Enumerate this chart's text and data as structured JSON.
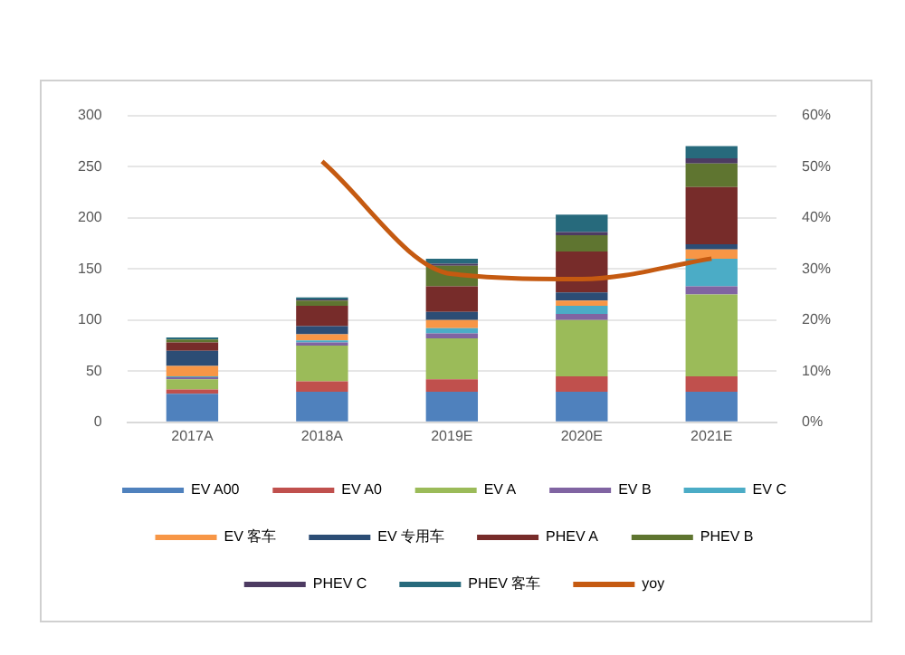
{
  "chart_data": {
    "type": "bar",
    "stacked": true,
    "categories": [
      "2017A",
      "2018A",
      "2019E",
      "2020E",
      "2021E"
    ],
    "series": [
      {
        "name": "EV A00",
        "color": "#4f81bd",
        "values": [
          28,
          30,
          30,
          30,
          30
        ]
      },
      {
        "name": "EV A0",
        "color": "#c0504d",
        "values": [
          4,
          10,
          12,
          15,
          15
        ]
      },
      {
        "name": "EV A",
        "color": "#9bbb59",
        "values": [
          10,
          35,
          40,
          55,
          80
        ]
      },
      {
        "name": "EV B",
        "color": "#8064a2",
        "values": [
          2,
          3,
          5,
          6,
          8
        ]
      },
      {
        "name": "EV C",
        "color": "#4bacc6",
        "values": [
          1,
          2,
          5,
          8,
          27
        ]
      },
      {
        "name": "EV 客车",
        "color": "#f79646",
        "values": [
          10,
          6,
          8,
          5,
          9
        ]
      },
      {
        "name": "EV 专用车",
        "color": "#2c4d75",
        "values": [
          15,
          8,
          8,
          8,
          5
        ]
      },
      {
        "name": "PHEV A",
        "color": "#772c2a",
        "values": [
          8,
          20,
          25,
          40,
          56
        ]
      },
      {
        "name": "PHEV B",
        "color": "#5f7530",
        "values": [
          3,
          5,
          20,
          16,
          23
        ]
      },
      {
        "name": "PHEV C",
        "color": "#4d3b62",
        "values": [
          0,
          1,
          2,
          3,
          5
        ]
      },
      {
        "name": "PHEV 客车",
        "color": "#276a7c",
        "values": [
          2,
          2,
          5,
          17,
          12
        ]
      },
      {
        "name": "yoy",
        "type": "line",
        "axis": "y2",
        "color": "#c55a11",
        "values": [
          null,
          51,
          29,
          28,
          32
        ]
      }
    ],
    "ylim": [
      0,
      300
    ],
    "yticks": [
      0,
      50,
      100,
      150,
      200,
      250,
      300
    ],
    "y2lim": [
      0,
      60
    ],
    "y2ticks": [
      {
        "value": 0,
        "label": "0%"
      },
      {
        "value": 10,
        "label": "10%"
      },
      {
        "value": 20,
        "label": "20%"
      },
      {
        "value": 30,
        "label": "30%"
      },
      {
        "value": 40,
        "label": "40%"
      },
      {
        "value": 50,
        "label": "50%"
      },
      {
        "value": 60,
        "label": "60%"
      }
    ],
    "grid": "y",
    "legend": "bottom",
    "marker": "none"
  }
}
